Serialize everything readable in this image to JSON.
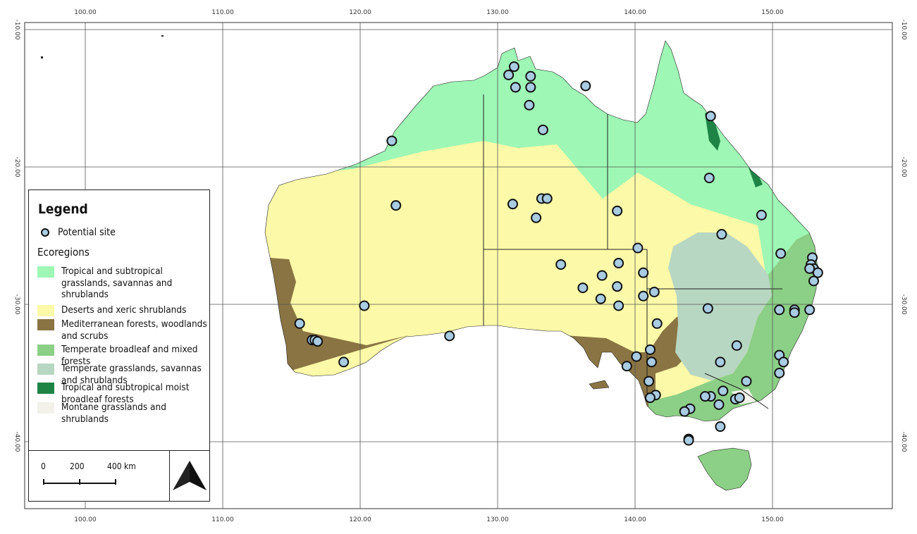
{
  "axes": {
    "lon_ticks": [
      "100.00",
      "110.00",
      "120.00",
      "130.00",
      "140.00",
      "150.00"
    ],
    "lat_ticks": [
      "-10.00",
      "-20.00",
      "-30.00",
      "-40.00"
    ]
  },
  "legend": {
    "title": "Legend",
    "site_label": "Potential site",
    "ecoregions_title": "Ecoregions",
    "items": [
      {
        "label": "Tropical and subtropical grasslands, savannas and shrublands",
        "color": "#9ef7b5"
      },
      {
        "label": "Deserts and xeric shrublands",
        "color": "#fcf9a8"
      },
      {
        "label": "Mediterranean forests, woodlands and scrubs",
        "color": "#8a7443"
      },
      {
        "label": "Temperate broadleaf and mixed forests",
        "color": "#8ccf86"
      },
      {
        "label": "Temperate grasslands, savannas and shrublands",
        "color": "#b8d7c2"
      },
      {
        "label": "Tropical and subtropical moist broadleaf forests",
        "color": "#1e8446"
      },
      {
        "label": "Montane grasslands and shrublands",
        "color": "#f2f2ea"
      }
    ]
  },
  "scale": {
    "labels": [
      "0",
      "200",
      "400 km"
    ]
  },
  "sites": [
    [
      131.2,
      -12.7
    ],
    [
      130.8,
      -13.3
    ],
    [
      132.4,
      -13.4
    ],
    [
      131.3,
      -14.2
    ],
    [
      132.4,
      -14.2
    ],
    [
      136.4,
      -14.1
    ],
    [
      132.3,
      -15.5
    ],
    [
      133.3,
      -17.3
    ],
    [
      122.3,
      -18.1
    ],
    [
      145.5,
      -16.3
    ],
    [
      145.4,
      -20.8
    ],
    [
      149.2,
      -23.5
    ],
    [
      133.2,
      -22.3
    ],
    [
      133.6,
      -22.3
    ],
    [
      131.1,
      -22.7
    ],
    [
      132.8,
      -23.7
    ],
    [
      138.7,
      -23.2
    ],
    [
      122.6,
      -22.8
    ],
    [
      146.3,
      -24.9
    ],
    [
      140.2,
      -25.9
    ],
    [
      150.6,
      -26.3
    ],
    [
      152.9,
      -26.6
    ],
    [
      152.8,
      -27.1
    ],
    [
      153.0,
      -27.4
    ],
    [
      153.3,
      -27.7
    ],
    [
      152.7,
      -27.4
    ],
    [
      153.0,
      -28.3
    ],
    [
      134.6,
      -27.1
    ],
    [
      137.6,
      -27.9
    ],
    [
      138.8,
      -27.0
    ],
    [
      140.6,
      -27.7
    ],
    [
      136.2,
      -28.8
    ],
    [
      138.7,
      -28.7
    ],
    [
      141.4,
      -29.1
    ],
    [
      140.6,
      -29.4
    ],
    [
      137.5,
      -29.6
    ],
    [
      138.8,
      -30.1
    ],
    [
      120.3,
      -30.1
    ],
    [
      145.3,
      -30.3
    ],
    [
      150.5,
      -30.4
    ],
    [
      151.6,
      -30.4
    ],
    [
      151.6,
      -30.6
    ],
    [
      152.7,
      -30.4
    ],
    [
      115.6,
      -31.4
    ],
    [
      141.6,
      -31.4
    ],
    [
      116.5,
      -32.6
    ],
    [
      116.7,
      -32.6
    ],
    [
      116.9,
      -32.7
    ],
    [
      126.5,
      -32.3
    ],
    [
      147.4,
      -33.0
    ],
    [
      141.1,
      -33.3
    ],
    [
      140.1,
      -33.8
    ],
    [
      150.5,
      -33.7
    ],
    [
      150.8,
      -34.2
    ],
    [
      118.8,
      -34.2
    ],
    [
      141.2,
      -34.2
    ],
    [
      146.2,
      -34.2
    ],
    [
      139.4,
      -34.5
    ],
    [
      150.5,
      -35.0
    ],
    [
      148.1,
      -35.6
    ],
    [
      141.0,
      -35.6
    ],
    [
      141.5,
      -36.6
    ],
    [
      141.1,
      -36.8
    ],
    [
      146.4,
      -36.3
    ],
    [
      145.5,
      -36.7
    ],
    [
      145.1,
      -36.7
    ],
    [
      147.3,
      -36.9
    ],
    [
      147.6,
      -36.8
    ],
    [
      146.1,
      -37.3
    ],
    [
      144.0,
      -37.6
    ],
    [
      143.6,
      -37.8
    ],
    [
      146.2,
      -38.9
    ],
    [
      143.9,
      -39.8
    ],
    [
      143.9,
      -39.9
    ]
  ]
}
